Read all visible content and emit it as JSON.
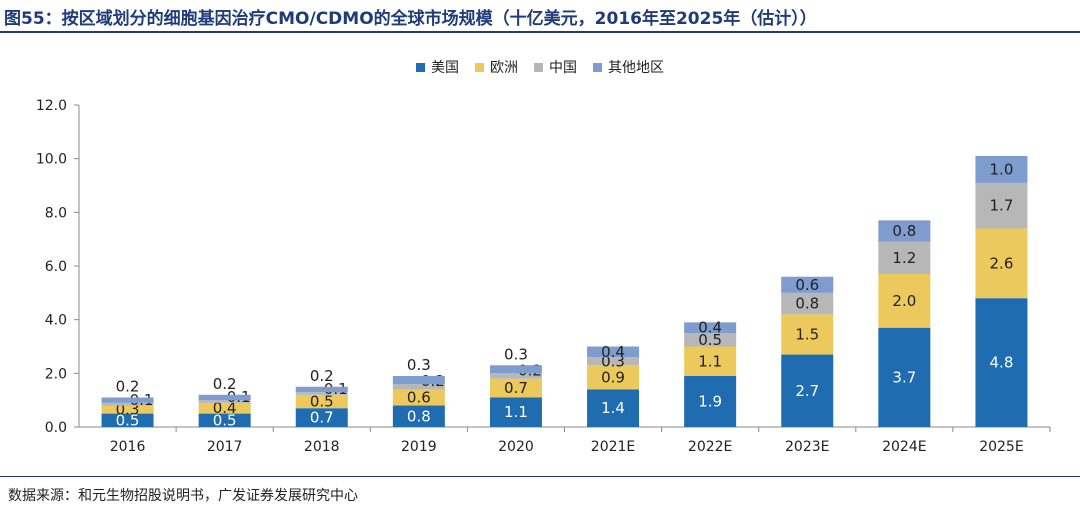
{
  "title": "图55：按区域划分的细胞基因治疗CMO/CDMO的全球市场规模（十亿美元，2016年至2025年（估计））",
  "source": "数据来源：和元生物招股说明书，广发证券发展研究中心",
  "colors": {
    "title": "#1f3b7a",
    "usa": "#1f6cb0",
    "europe": "#ebc95d",
    "china": "#b7b7b7",
    "other": "#7e9ccd"
  },
  "chart_data": {
    "type": "bar",
    "stacked": true,
    "categories": [
      "2016",
      "2017",
      "2018",
      "2019",
      "2020",
      "2021E",
      "2022E",
      "2023E",
      "2024E",
      "2025E"
    ],
    "series": [
      {
        "name": "美国",
        "values": [
          0.5,
          0.5,
          0.7,
          0.8,
          1.1,
          1.4,
          1.9,
          2.7,
          3.7,
          4.8
        ]
      },
      {
        "name": "欧洲",
        "values": [
          0.3,
          0.4,
          0.5,
          0.6,
          0.7,
          0.9,
          1.1,
          1.5,
          2.0,
          2.6
        ]
      },
      {
        "name": "中国",
        "values": [
          0.1,
          0.1,
          0.1,
          0.2,
          0.2,
          0.3,
          0.5,
          0.8,
          1.2,
          1.7
        ]
      },
      {
        "name": "其他地区",
        "values": [
          0.2,
          0.2,
          0.2,
          0.3,
          0.3,
          0.4,
          0.4,
          0.6,
          0.8,
          1.0
        ]
      }
    ],
    "ylim": [
      0,
      12
    ],
    "yticks": [
      "0.0",
      "2.0",
      "4.0",
      "6.0",
      "8.0",
      "10.0",
      "12.0"
    ],
    "legend_position": "top-center",
    "grid": false
  }
}
